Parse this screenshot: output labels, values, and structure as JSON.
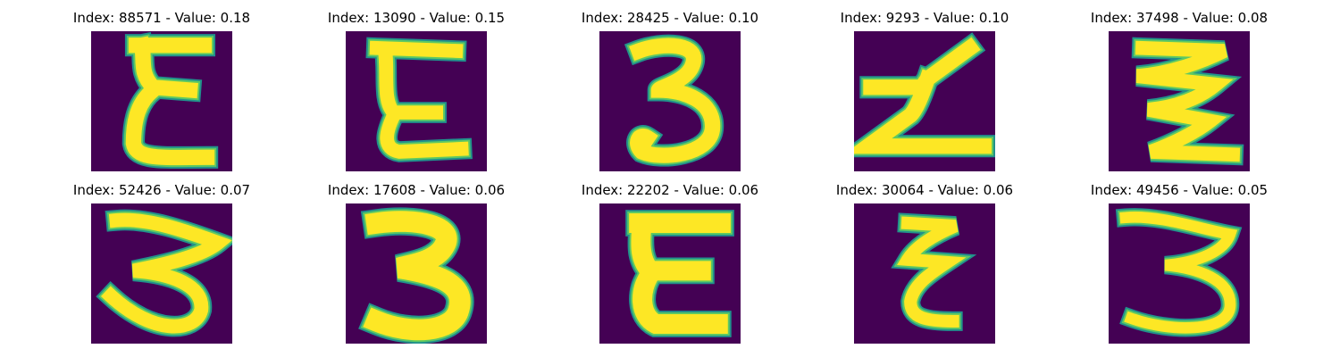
{
  "colors": {
    "background": "#440154",
    "stroke_edge": "#21918c",
    "stroke_mid": "#5ec962",
    "stroke_core": "#fde725"
  },
  "title_format": "Index: {index} - Value: {value}",
  "items": [
    {
      "index": "88571",
      "value": "0.18",
      "title": "Index: 88571 - Value: 0.18",
      "shape": "epsilon"
    },
    {
      "index": "13090",
      "value": "0.15",
      "title": "Index: 13090 - Value: 0.15",
      "shape": "epsilon-open"
    },
    {
      "index": "28425",
      "value": "0.10",
      "title": "Index: 28425 - Value: 0.10",
      "shape": "three"
    },
    {
      "index": "9293",
      "value": "0.10",
      "title": "Index: 9293 - Value: 0.10",
      "shape": "zigzag-z"
    },
    {
      "index": "37498",
      "value": "0.08",
      "title": "Index: 37498 - Value: 0.08",
      "shape": "zigzag-stack"
    },
    {
      "index": "52426",
      "value": "0.07",
      "title": "Index: 52426 - Value: 0.07",
      "shape": "three-wide"
    },
    {
      "index": "17608",
      "value": "0.06",
      "title": "Index: 17608 - Value: 0.06",
      "shape": "three-bold"
    },
    {
      "index": "22202",
      "value": "0.06",
      "title": "Index: 22202 - Value: 0.06",
      "shape": "epsilon-bold"
    },
    {
      "index": "30064",
      "value": "0.06",
      "title": "Index: 30064 - Value: 0.06",
      "shape": "epsilon-thin"
    },
    {
      "index": "49456",
      "value": "0.05",
      "title": "Index: 49456 - Value: 0.05",
      "shape": "three-thin"
    }
  ]
}
